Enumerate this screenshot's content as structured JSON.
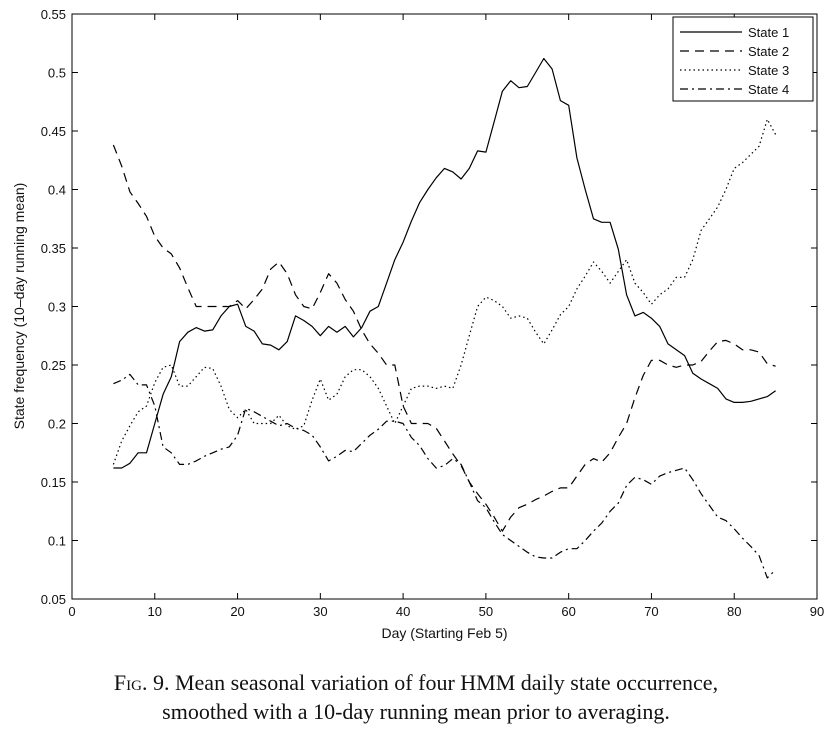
{
  "chart_data": {
    "type": "line",
    "title": "",
    "xlabel": "Day (Starting Feb 5)",
    "ylabel": "State frequency (10–day running mean)",
    "xlim": [
      0,
      90
    ],
    "ylim": [
      0.05,
      0.55
    ],
    "xticks": [
      0,
      10,
      20,
      30,
      40,
      50,
      60,
      70,
      80,
      90
    ],
    "yticks": [
      0.05,
      0.1,
      0.15,
      0.2,
      0.25,
      0.3,
      0.35,
      0.4,
      0.45,
      0.5,
      0.55
    ],
    "ytick_labels": [
      "0.05",
      "0.1",
      "0.15",
      "0.2",
      "0.25",
      "0.3",
      "0.35",
      "0.4",
      "0.45",
      "0.5",
      "0.55"
    ],
    "grid": false,
    "legend_position": "top-right",
    "series": [
      {
        "name": "State 1",
        "style": "solid",
        "x": [
          5,
          6,
          7,
          8,
          9,
          10,
          11,
          12,
          13,
          14,
          15,
          16,
          17,
          18,
          19,
          20,
          21,
          22,
          23,
          24,
          25,
          26,
          27,
          28,
          29,
          30,
          31,
          32,
          33,
          34,
          35,
          36,
          37,
          38,
          39,
          40,
          41,
          42,
          43,
          44,
          45,
          46,
          47,
          48,
          49,
          50,
          51,
          52,
          53,
          54,
          55,
          56,
          57,
          58,
          59,
          60,
          61,
          62,
          63,
          64,
          65,
          66,
          67,
          68,
          69,
          70,
          71,
          72,
          73,
          74,
          75,
          76,
          77,
          78,
          79,
          80,
          81,
          82,
          83,
          84,
          85
        ],
        "y": [
          0.162,
          0.162,
          0.166,
          0.175,
          0.175,
          0.2,
          0.225,
          0.24,
          0.27,
          0.278,
          0.282,
          0.279,
          0.28,
          0.292,
          0.3,
          0.302,
          0.283,
          0.279,
          0.268,
          0.267,
          0.263,
          0.27,
          0.292,
          0.288,
          0.283,
          0.275,
          0.283,
          0.278,
          0.283,
          0.274,
          0.282,
          0.296,
          0.3,
          0.32,
          0.34,
          0.355,
          0.373,
          0.389,
          0.4,
          0.41,
          0.418,
          0.415,
          0.409,
          0.418,
          0.433,
          0.432,
          0.458,
          0.484,
          0.493,
          0.487,
          0.488,
          0.5,
          0.512,
          0.503,
          0.476,
          0.472,
          0.427,
          0.4,
          0.375,
          0.372,
          0.372,
          0.349,
          0.31,
          0.292,
          0.295,
          0.29,
          0.283,
          0.268,
          0.263,
          0.258,
          0.243,
          0.238,
          0.234,
          0.23,
          0.221,
          0.218,
          0.218,
          0.219,
          0.221,
          0.223,
          0.228
        ]
      },
      {
        "name": "State 2",
        "style": "dashed",
        "x": [
          5,
          6,
          7,
          8,
          9,
          10,
          11,
          12,
          13,
          14,
          15,
          16,
          17,
          18,
          19,
          20,
          21,
          22,
          23,
          24,
          25,
          26,
          27,
          28,
          29,
          30,
          31,
          32,
          33,
          34,
          35,
          36,
          37,
          38,
          39,
          40,
          41,
          42,
          43,
          44,
          45,
          46,
          47,
          48,
          49,
          50,
          51,
          52,
          53,
          54,
          55,
          56,
          57,
          58,
          59,
          60,
          61,
          62,
          63,
          64,
          65,
          66,
          67,
          68,
          69,
          70,
          71,
          72,
          73,
          74,
          75,
          76,
          77,
          78,
          79,
          80,
          81,
          82,
          83,
          84,
          85
        ],
        "y": [
          0.438,
          0.42,
          0.398,
          0.388,
          0.377,
          0.36,
          0.35,
          0.345,
          0.333,
          0.316,
          0.3,
          0.3,
          0.3,
          0.3,
          0.3,
          0.305,
          0.298,
          0.306,
          0.315,
          0.332,
          0.338,
          0.328,
          0.31,
          0.3,
          0.298,
          0.312,
          0.328,
          0.32,
          0.306,
          0.296,
          0.28,
          0.268,
          0.26,
          0.25,
          0.25,
          0.215,
          0.2,
          0.2,
          0.2,
          0.196,
          0.185,
          0.174,
          0.164,
          0.15,
          0.14,
          0.131,
          0.12,
          0.108,
          0.12,
          0.128,
          0.131,
          0.135,
          0.138,
          0.142,
          0.145,
          0.145,
          0.155,
          0.165,
          0.17,
          0.167,
          0.175,
          0.188,
          0.2,
          0.222,
          0.241,
          0.254,
          0.254,
          0.25,
          0.248,
          0.25,
          0.25,
          0.253,
          0.262,
          0.27,
          0.271,
          0.268,
          0.263,
          0.263,
          0.261,
          0.251,
          0.249
        ]
      },
      {
        "name": "State 3",
        "style": "dotted",
        "x": [
          5,
          6,
          7,
          8,
          9,
          10,
          11,
          12,
          13,
          14,
          15,
          16,
          17,
          18,
          19,
          20,
          21,
          22,
          23,
          24,
          25,
          26,
          27,
          28,
          29,
          30,
          31,
          32,
          33,
          34,
          35,
          36,
          37,
          38,
          39,
          40,
          41,
          42,
          43,
          44,
          45,
          46,
          47,
          48,
          49,
          50,
          51,
          52,
          53,
          54,
          55,
          56,
          57,
          58,
          59,
          60,
          61,
          62,
          63,
          64,
          65,
          66,
          67,
          68,
          69,
          70,
          71,
          72,
          73,
          74,
          75,
          76,
          77,
          78,
          79,
          80,
          81,
          82,
          83,
          84,
          85
        ],
        "y": [
          0.165,
          0.185,
          0.198,
          0.21,
          0.215,
          0.235,
          0.248,
          0.25,
          0.232,
          0.232,
          0.24,
          0.248,
          0.247,
          0.232,
          0.212,
          0.205,
          0.212,
          0.2,
          0.2,
          0.2,
          0.207,
          0.198,
          0.195,
          0.198,
          0.22,
          0.238,
          0.22,
          0.225,
          0.24,
          0.246,
          0.246,
          0.24,
          0.23,
          0.215,
          0.2,
          0.215,
          0.23,
          0.232,
          0.232,
          0.23,
          0.232,
          0.23,
          0.25,
          0.275,
          0.3,
          0.308,
          0.305,
          0.3,
          0.29,
          0.292,
          0.29,
          0.278,
          0.268,
          0.28,
          0.293,
          0.3,
          0.315,
          0.326,
          0.338,
          0.33,
          0.32,
          0.33,
          0.34,
          0.32,
          0.312,
          0.302,
          0.31,
          0.315,
          0.325,
          0.325,
          0.34,
          0.365,
          0.375,
          0.385,
          0.4,
          0.418,
          0.423,
          0.43,
          0.437,
          0.46,
          0.447
        ]
      },
      {
        "name": "State 4",
        "style": "dashdot",
        "x": [
          5,
          6,
          7,
          8,
          9,
          10,
          11,
          12,
          13,
          14,
          15,
          16,
          17,
          18,
          19,
          20,
          21,
          22,
          23,
          24,
          25,
          26,
          27,
          28,
          29,
          30,
          31,
          32,
          33,
          34,
          35,
          36,
          37,
          38,
          39,
          40,
          41,
          42,
          43,
          44,
          45,
          46,
          47,
          48,
          49,
          50,
          51,
          52,
          53,
          54,
          55,
          56,
          57,
          58,
          59,
          60,
          61,
          62,
          63,
          64,
          65,
          66,
          67,
          68,
          69,
          70,
          71,
          72,
          73,
          74,
          75,
          76,
          77,
          78,
          79,
          80,
          81,
          82,
          83,
          84,
          85
        ],
        "y": [
          0.234,
          0.237,
          0.242,
          0.233,
          0.233,
          0.215,
          0.18,
          0.175,
          0.165,
          0.165,
          0.168,
          0.172,
          0.175,
          0.178,
          0.18,
          0.19,
          0.213,
          0.21,
          0.206,
          0.202,
          0.198,
          0.2,
          0.196,
          0.194,
          0.19,
          0.18,
          0.168,
          0.172,
          0.177,
          0.176,
          0.183,
          0.19,
          0.195,
          0.202,
          0.202,
          0.2,
          0.188,
          0.181,
          0.17,
          0.162,
          0.164,
          0.17,
          0.165,
          0.15,
          0.134,
          0.128,
          0.116,
          0.105,
          0.1,
          0.095,
          0.09,
          0.086,
          0.085,
          0.085,
          0.09,
          0.093,
          0.093,
          0.1,
          0.108,
          0.115,
          0.125,
          0.132,
          0.147,
          0.154,
          0.152,
          0.148,
          0.155,
          0.158,
          0.16,
          0.162,
          0.152,
          0.14,
          0.13,
          0.12,
          0.117,
          0.11,
          0.102,
          0.095,
          0.087,
          0.068,
          0.075
        ]
      }
    ]
  },
  "caption": {
    "fig_label": "Fig. 9.",
    "line1": "Mean seasonal variation of four HMM daily state occurrence,",
    "line2": "smoothed with a 10-day running mean prior to averaging."
  }
}
